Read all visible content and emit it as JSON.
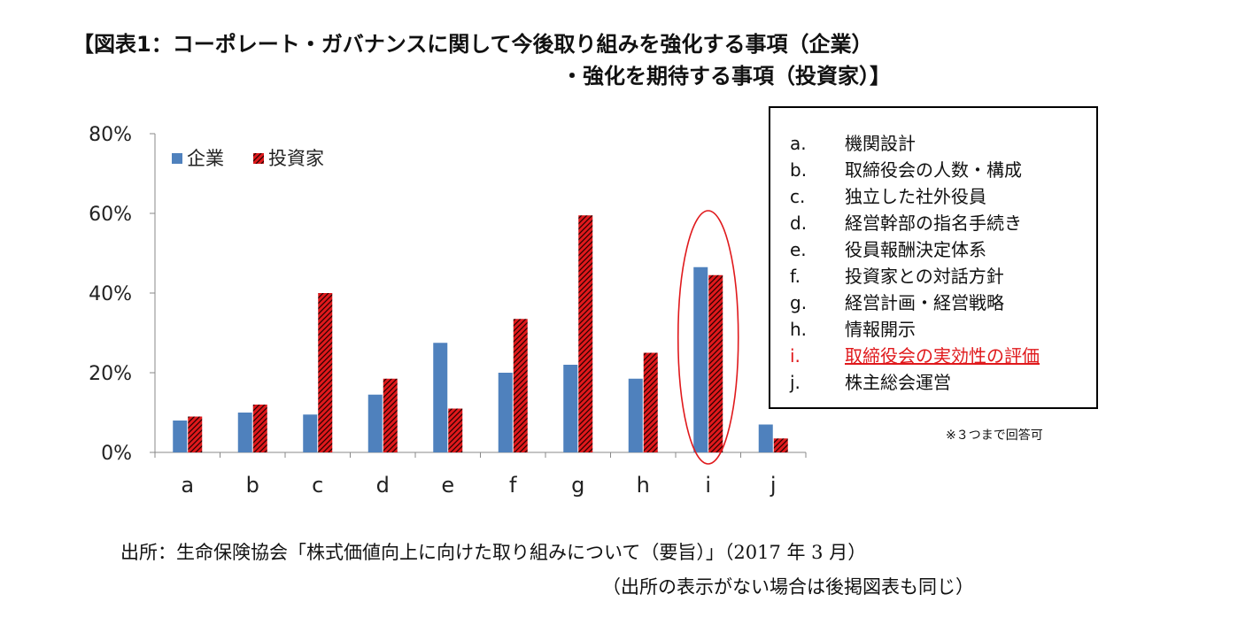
{
  "title": {
    "line1": "【図表1：コーポレート・ガバナンスに関して今後取り組みを強化する事項（企業）",
    "line2": "・強化を期待する事項（投資家）】"
  },
  "chart_data": {
    "type": "bar",
    "categories": [
      "a",
      "b",
      "c",
      "d",
      "e",
      "f",
      "g",
      "h",
      "i",
      "j"
    ],
    "series": [
      {
        "name": "企業",
        "color": "#4f81bd",
        "values": [
          8,
          10,
          9.5,
          14.5,
          27.5,
          20,
          22,
          18.5,
          46.5,
          7
        ]
      },
      {
        "name": "投資家",
        "color": "#e0191c",
        "values": [
          9,
          12,
          40,
          18.5,
          11,
          33.5,
          59.5,
          25,
          44.5,
          3.5
        ]
      }
    ],
    "ylim": [
      0,
      80
    ],
    "yticks": [
      "0%",
      "20%",
      "40%",
      "60%",
      "80%"
    ],
    "xlabel": "",
    "ylabel": "",
    "highlight_category": "i",
    "highlight_color": "#e0191c"
  },
  "legend_items": [
    {
      "key": "a.",
      "text": "機関設計"
    },
    {
      "key": "b.",
      "text": "取締役会の人数・構成"
    },
    {
      "key": "c.",
      "text": "独立した社外役員"
    },
    {
      "key": "d.",
      "text": "経営幹部の指名手続き"
    },
    {
      "key": "e.",
      "text": "役員報酬決定体系"
    },
    {
      "key": "f.",
      "text": "投資家との対話方針"
    },
    {
      "key": "g.",
      "text": "経営計画・経営戦略"
    },
    {
      "key": "h.",
      "text": "情報開示"
    },
    {
      "key": "i.",
      "text": "取締役会の実効性の評価",
      "highlight": true
    },
    {
      "key": "j.",
      "text": "株主総会運営"
    }
  ],
  "note": "※３つまで回答可",
  "source": {
    "line1": "出所：生命保険協会「株式価値向上に向けた取り組みについて（要旨）」（2017 年 3 月）",
    "line2": "（出所の表示がない場合は後掲図表も同じ）"
  }
}
